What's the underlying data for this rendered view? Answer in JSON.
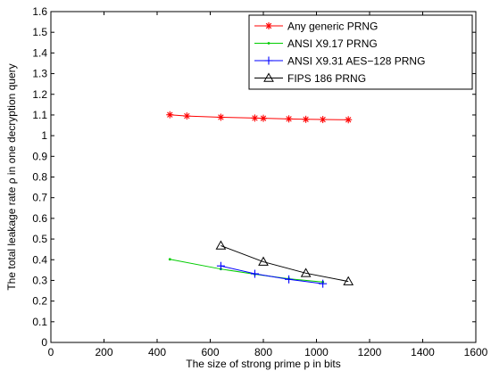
{
  "chart_data": {
    "type": "line",
    "xlabel": "The size of strong prime p in bits",
    "ylabel": "The total leakage rate ρ in one decryption query",
    "xlim": [
      0,
      1600
    ],
    "ylim": [
      0,
      1.6
    ],
    "xticks": [
      0,
      200,
      400,
      600,
      800,
      1000,
      1200,
      1400,
      1600
    ],
    "yticks": [
      0,
      0.1,
      0.2,
      0.3,
      0.4,
      0.5,
      0.6,
      0.7,
      0.8,
      0.9,
      1,
      1.1,
      1.2,
      1.3,
      1.4,
      1.5,
      1.6
    ],
    "grid": false,
    "legend_position": "top-right",
    "series": [
      {
        "name": "Any generic PRNG",
        "color": "#ff0000",
        "marker": "asterisk",
        "x": [
          448,
          512,
          640,
          768,
          800,
          896,
          960,
          1024,
          1120
        ],
        "y": [
          1.101,
          1.095,
          1.089,
          1.085,
          1.084,
          1.081,
          1.079,
          1.078,
          1.077
        ]
      },
      {
        "name": "ANSI X9.17 PRNG",
        "color": "#00cc00",
        "marker": "point",
        "x": [
          448,
          640,
          768,
          896,
          1024
        ],
        "y": [
          0.402,
          0.355,
          0.33,
          0.308,
          0.292
        ]
      },
      {
        "name": "ANSI X9.31 AES−128 PRNG",
        "color": "#0000ff",
        "marker": "plus",
        "x": [
          640,
          768,
          896,
          1024
        ],
        "y": [
          0.37,
          0.332,
          0.305,
          0.284
        ]
      },
      {
        "name": "FIPS 186 PRNG",
        "color": "#000000",
        "marker": "triangle",
        "x": [
          640,
          800,
          960,
          1120
        ],
        "y": [
          0.468,
          0.39,
          0.335,
          0.295
        ]
      }
    ]
  }
}
